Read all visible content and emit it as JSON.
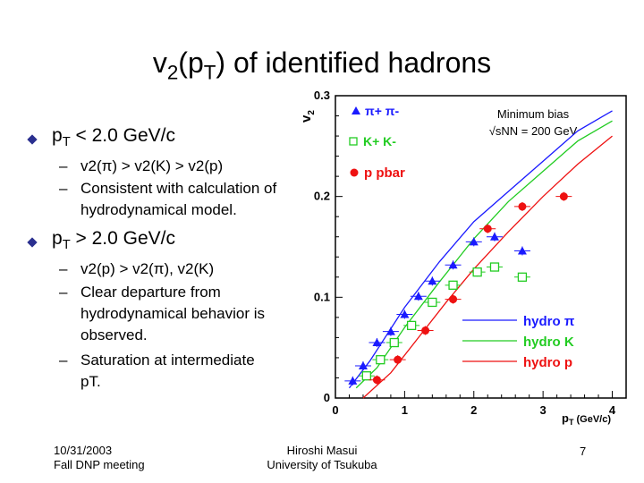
{
  "slide": {
    "title_pre": "v",
    "title_sub": "2",
    "title_mid": "(p",
    "title_sub2": "T",
    "title_post": ") of identified hadrons",
    "bullet1": {
      "pre": "p",
      "sub": "T",
      "post": " < 2.0 GeV/c"
    },
    "bullet1_items": [
      "v2(π) > v2(K) > v2(p)",
      "Consistent with calculation of",
      "hydrodynamical model."
    ],
    "bullet2": {
      "pre": "p",
      "sub": "T",
      "post": " > 2.0 GeV/c"
    },
    "bullet2_items": [
      "v2(p) > v2(π),  v2(K)",
      "Clear departure from",
      "hydrodynamical behavior is",
      "observed.",
      "Saturation at intermediate",
      "pT."
    ],
    "footer_left_1": "10/31/2003",
    "footer_left_2": "Fall DNP meeting",
    "footer_center_1": "Hiroshi Masui",
    "footer_center_2": "University of Tsukuba",
    "page_number": "7"
  },
  "chart_data": {
    "type": "scatter",
    "ylabel": "v2",
    "xlabel": "pT (GeV/c)",
    "xlim": [
      0,
      4.2
    ],
    "ylim": [
      0,
      0.3
    ],
    "x_ticks": [
      "0",
      "1",
      "2",
      "3",
      "4"
    ],
    "y_ticks": [
      "0",
      "0.1",
      "0.2",
      "0.3"
    ],
    "annotation": [
      "Minimum bias",
      "√sNN = 200 GeV"
    ],
    "legend_points": [
      "π+ π-",
      "K+ K-",
      "p pbar"
    ],
    "legend_lines": [
      "hydro π",
      "hydro K",
      "hydro p"
    ],
    "colors": {
      "pion": "#1a1aff",
      "kaon": "#22cc22",
      "proton": "#ee1111",
      "axis": "#000000"
    },
    "series": [
      {
        "name": "π+ π-",
        "marker": "triangle",
        "color": "#1a1aff",
        "x": [
          0.25,
          0.4,
          0.6,
          0.8,
          1.0,
          1.2,
          1.4,
          1.7,
          2.0,
          2.3,
          2.7
        ],
        "y": [
          0.017,
          0.032,
          0.055,
          0.066,
          0.083,
          0.101,
          0.116,
          0.132,
          0.155,
          0.16,
          0.146
        ]
      },
      {
        "name": "K+ K-",
        "marker": "square",
        "color": "#22cc22",
        "x": [
          0.45,
          0.65,
          0.85,
          1.1,
          1.4,
          1.7,
          2.05,
          2.3,
          2.7
        ],
        "y": [
          0.022,
          0.038,
          0.055,
          0.072,
          0.095,
          0.112,
          0.125,
          0.13,
          0.12
        ]
      },
      {
        "name": "p pbar",
        "marker": "circle",
        "color": "#ee1111",
        "x": [
          0.6,
          0.9,
          1.3,
          1.7,
          2.2,
          2.7,
          3.3
        ],
        "y": [
          0.018,
          0.038,
          0.067,
          0.098,
          0.168,
          0.19,
          0.2
        ]
      }
    ],
    "hydro": [
      {
        "name": "hydro π",
        "color": "#1a1aff",
        "x": [
          0.2,
          0.5,
          1.0,
          1.5,
          2.0,
          2.5,
          3.0,
          3.5,
          4.0
        ],
        "y": [
          0.01,
          0.037,
          0.09,
          0.135,
          0.175,
          0.205,
          0.235,
          0.265,
          0.285
        ]
      },
      {
        "name": "hydro K",
        "color": "#22cc22",
        "x": [
          0.3,
          0.6,
          1.0,
          1.5,
          2.0,
          2.5,
          3.0,
          3.5,
          4.0
        ],
        "y": [
          0.01,
          0.03,
          0.07,
          0.115,
          0.158,
          0.195,
          0.225,
          0.255,
          0.275
        ]
      },
      {
        "name": "hydro p",
        "color": "#ee1111",
        "x": [
          0.4,
          0.8,
          1.2,
          1.6,
          2.0,
          2.5,
          3.0,
          3.5,
          4.0
        ],
        "y": [
          0.0,
          0.025,
          0.06,
          0.095,
          0.128,
          0.165,
          0.2,
          0.232,
          0.26
        ]
      }
    ]
  }
}
